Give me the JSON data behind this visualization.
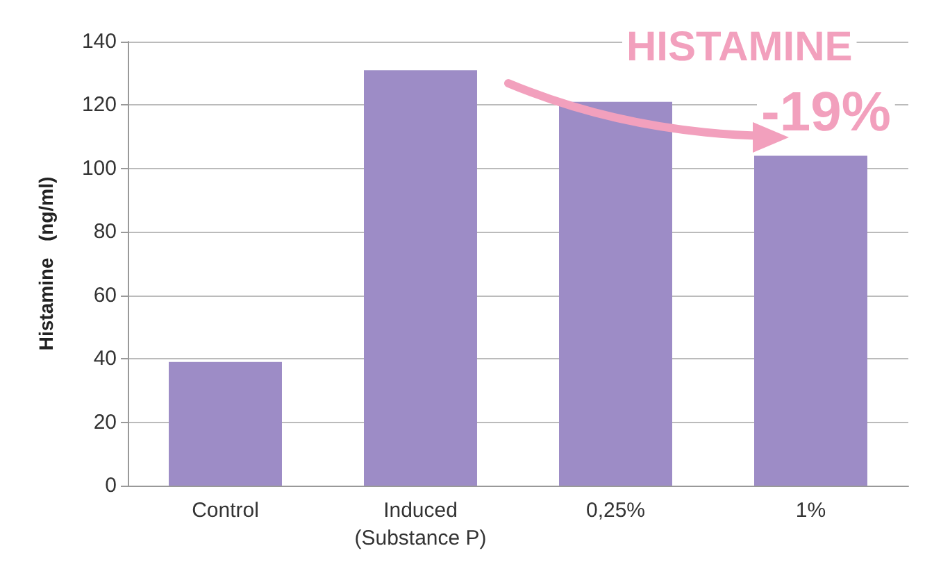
{
  "chart_data": {
    "type": "bar",
    "ylabel": "Histamine   (ng/ml)",
    "categories": [
      "Control",
      "Induced\n(Substance P)",
      "0,25%",
      "1%"
    ],
    "values": [
      39,
      131,
      121,
      104
    ],
    "color": "#9d8cc6",
    "ylim": [
      0,
      140
    ],
    "yticks": [
      0,
      20,
      40,
      60,
      80,
      100,
      120,
      140
    ],
    "grid": "y",
    "annotations": [
      "HISTAMINE",
      "-19%"
    ]
  }
}
